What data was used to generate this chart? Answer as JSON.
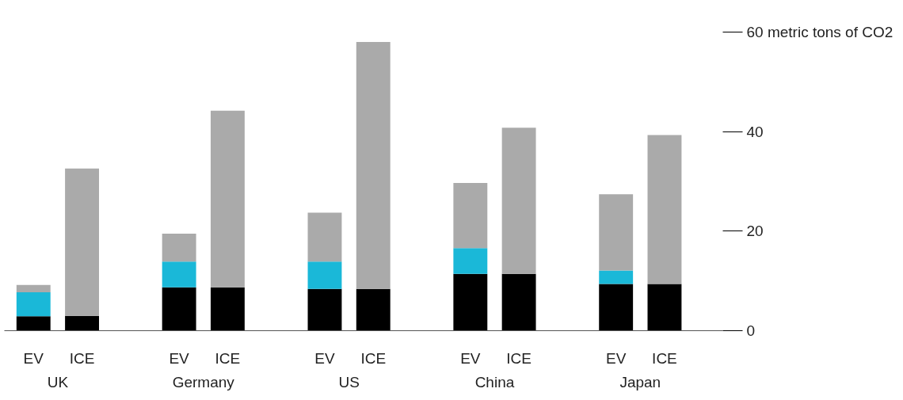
{
  "chart_data": {
    "type": "bar",
    "stacked": true,
    "categories": [
      "EV",
      "ICE",
      "EV",
      "ICE",
      "EV",
      "ICE",
      "EV",
      "ICE",
      "EV",
      "ICE"
    ],
    "annotations": [
      "UK",
      "Germany",
      "US",
      "China",
      "Japan"
    ],
    "series": [
      {
        "color": "#000000",
        "values": [
          2.9,
          3.0,
          8.7,
          8.7,
          8.4,
          8.4,
          11.4,
          11.4,
          9.4,
          9.4
        ]
      },
      {
        "color": "#1ab8d8",
        "values": [
          4.8,
          null,
          5.2,
          null,
          5.5,
          null,
          5.2,
          null,
          2.7,
          null
        ]
      },
      {
        "color": "#aaaaaa",
        "values": [
          1.5,
          29.6,
          5.6,
          35.5,
          9.8,
          49.6,
          13.1,
          29.4,
          15.3,
          29.9
        ]
      }
    ],
    "ylim": [
      0,
      60
    ],
    "yticks": [
      0,
      20,
      40,
      {
        "value": 60,
        "label": "60 metric tons of CO2"
      }
    ],
    "grid": false
  }
}
